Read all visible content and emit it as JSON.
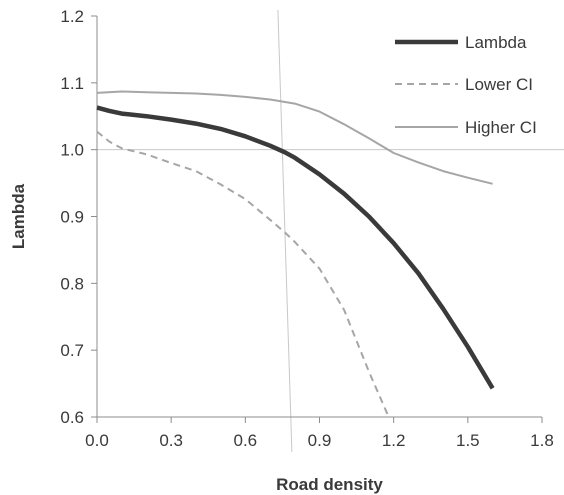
{
  "chart_data": {
    "type": "line",
    "xlabel": "Road density",
    "ylabel": "Lambda",
    "xlim": [
      0.0,
      1.8
    ],
    "ylim": [
      0.6,
      1.2
    ],
    "xticks": [
      "0.0",
      "0.3",
      "0.6",
      "0.9",
      "1.2",
      "1.5",
      "1.8"
    ],
    "yticks": [
      "0.6",
      "0.7",
      "0.8",
      "0.9",
      "1.0",
      "1.1",
      "1.2"
    ],
    "grid": false,
    "legend_position": "top-right",
    "reference_lines": {
      "y": 1.0,
      "x": 0.76
    },
    "series": [
      {
        "name": "Lambda",
        "style": "solid-thick",
        "color": "#3a3a3a",
        "x": [
          0.0,
          0.05,
          0.1,
          0.2,
          0.3,
          0.4,
          0.5,
          0.6,
          0.7,
          0.76,
          0.8,
          0.9,
          1.0,
          1.1,
          1.2,
          1.3,
          1.4,
          1.5,
          1.6
        ],
        "y": [
          1.063,
          1.058,
          1.054,
          1.05,
          1.045,
          1.039,
          1.031,
          1.02,
          1.006,
          0.996,
          0.988,
          0.963,
          0.934,
          0.9,
          0.86,
          0.815,
          0.762,
          0.705,
          0.643
        ]
      },
      {
        "name": "Lower CI",
        "style": "dashed",
        "color": "#a6a6a6",
        "x": [
          0.0,
          0.05,
          0.1,
          0.2,
          0.3,
          0.4,
          0.5,
          0.6,
          0.7,
          0.76,
          0.8,
          0.9,
          1.0,
          1.1,
          1.18
        ],
        "y": [
          1.027,
          1.012,
          1.002,
          0.993,
          0.98,
          0.968,
          0.948,
          0.926,
          0.895,
          0.876,
          0.862,
          0.822,
          0.76,
          0.668,
          0.6
        ]
      },
      {
        "name": "Higher CI",
        "style": "solid-thin",
        "color": "#a6a6a6",
        "x": [
          0.0,
          0.1,
          0.2,
          0.3,
          0.4,
          0.5,
          0.6,
          0.7,
          0.8,
          0.9,
          1.0,
          1.1,
          1.2,
          1.3,
          1.4,
          1.5,
          1.6
        ],
        "y": [
          1.085,
          1.087,
          1.086,
          1.085,
          1.084,
          1.082,
          1.079,
          1.075,
          1.069,
          1.057,
          1.038,
          1.017,
          0.995,
          0.981,
          0.968,
          0.958,
          0.949
        ]
      }
    ]
  }
}
